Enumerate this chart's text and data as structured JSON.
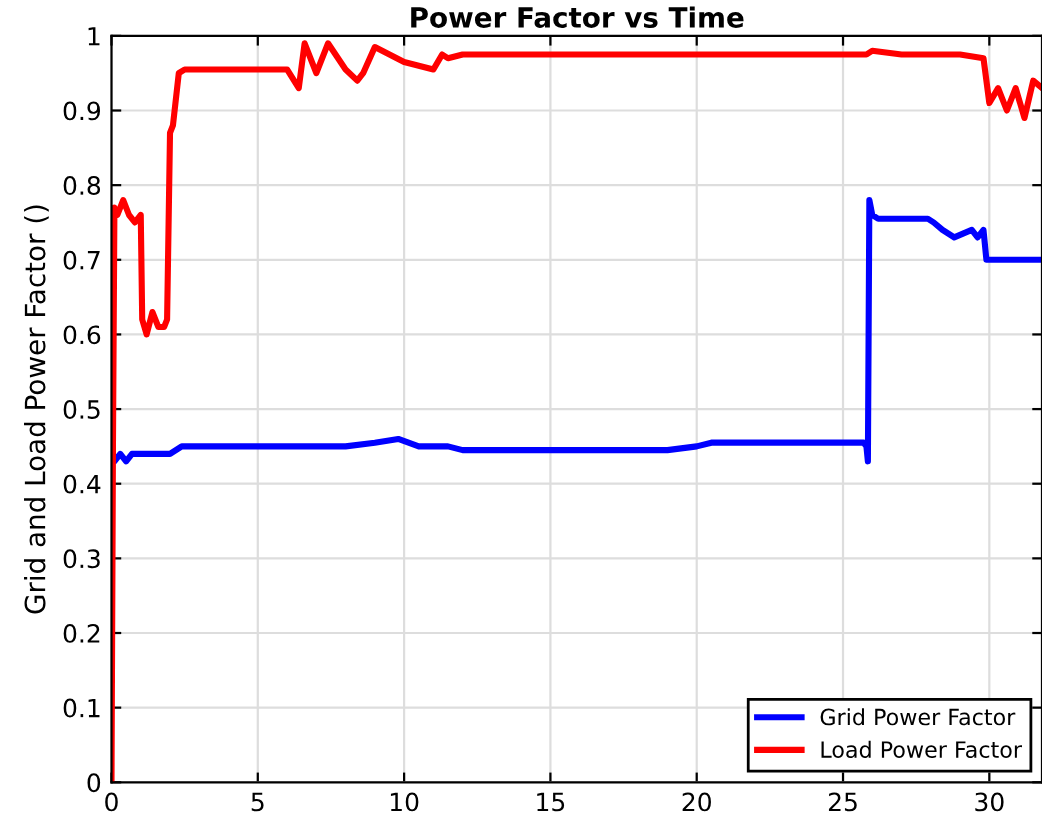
{
  "chart_data": {
    "type": "line",
    "title": "Power Factor vs Time",
    "ylabel": "Grid and Load Power Factor ()",
    "xlim": [
      0,
      31.8
    ],
    "ylim": [
      0,
      1
    ],
    "xticks": [
      0,
      5,
      10,
      15,
      20,
      25,
      30
    ],
    "yticks": [
      0,
      0.1,
      0.2,
      0.3,
      0.4,
      0.5,
      0.6,
      0.7,
      0.8,
      0.9,
      1
    ],
    "grid": true,
    "legend": "bottom right",
    "marker": "none",
    "line_style": "solid",
    "series": [
      {
        "name": "Grid Power Factor",
        "color": "#0000ff",
        "x": [
          0.05,
          0.1,
          0.3,
          0.5,
          0.7,
          1.0,
          1.5,
          2.0,
          2.4,
          3.0,
          4.0,
          5.0,
          6.0,
          7.0,
          8.0,
          9.0,
          9.8,
          10.5,
          11.5,
          12.0,
          13.0,
          14.0,
          15.0,
          16.0,
          17.0,
          18.0,
          19.0,
          20.0,
          20.5,
          21.0,
          22.0,
          23.0,
          24.0,
          25.0,
          25.7,
          25.8,
          25.85,
          25.9,
          26.0,
          26.2,
          27.0,
          27.9,
          28.1,
          28.4,
          28.8,
          29.1,
          29.4,
          29.6,
          29.8,
          29.9,
          30.5,
          31.8
        ],
        "values": [
          0.44,
          0.43,
          0.44,
          0.43,
          0.44,
          0.44,
          0.44,
          0.44,
          0.45,
          0.45,
          0.45,
          0.45,
          0.45,
          0.45,
          0.45,
          0.455,
          0.46,
          0.45,
          0.45,
          0.445,
          0.445,
          0.445,
          0.445,
          0.445,
          0.445,
          0.445,
          0.445,
          0.45,
          0.455,
          0.455,
          0.455,
          0.455,
          0.455,
          0.455,
          0.455,
          0.45,
          0.43,
          0.78,
          0.76,
          0.755,
          0.755,
          0.755,
          0.75,
          0.74,
          0.73,
          0.735,
          0.74,
          0.73,
          0.74,
          0.7,
          0.7,
          0.7
        ]
      },
      {
        "name": "Load Power Factor",
        "color": "#ff0000",
        "x": [
          0.0,
          0.05,
          0.1,
          0.2,
          0.4,
          0.6,
          0.8,
          1.0,
          1.05,
          1.2,
          1.4,
          1.6,
          1.8,
          1.9,
          2.0,
          2.1,
          2.3,
          2.5,
          3.0,
          4.0,
          5.0,
          6.0,
          6.4,
          6.6,
          7.0,
          7.4,
          8.0,
          8.4,
          8.6,
          9.0,
          10.0,
          10.5,
          11.0,
          11.3,
          11.5,
          12.0,
          14.0,
          16.0,
          18.0,
          20.0,
          22.0,
          24.0,
          25.0,
          25.8,
          26.0,
          27.0,
          29.0,
          29.8,
          30.0,
          30.3,
          30.6,
          30.9,
          31.2,
          31.5,
          31.8
        ],
        "values": [
          0.0,
          0.45,
          0.77,
          0.76,
          0.78,
          0.76,
          0.75,
          0.76,
          0.62,
          0.6,
          0.63,
          0.61,
          0.61,
          0.62,
          0.87,
          0.88,
          0.95,
          0.955,
          0.955,
          0.955,
          0.955,
          0.955,
          0.93,
          0.99,
          0.95,
          0.99,
          0.955,
          0.94,
          0.95,
          0.985,
          0.965,
          0.96,
          0.955,
          0.975,
          0.97,
          0.975,
          0.975,
          0.975,
          0.975,
          0.975,
          0.975,
          0.975,
          0.975,
          0.975,
          0.98,
          0.975,
          0.975,
          0.97,
          0.91,
          0.93,
          0.9,
          0.93,
          0.89,
          0.94,
          0.93
        ]
      }
    ]
  }
}
